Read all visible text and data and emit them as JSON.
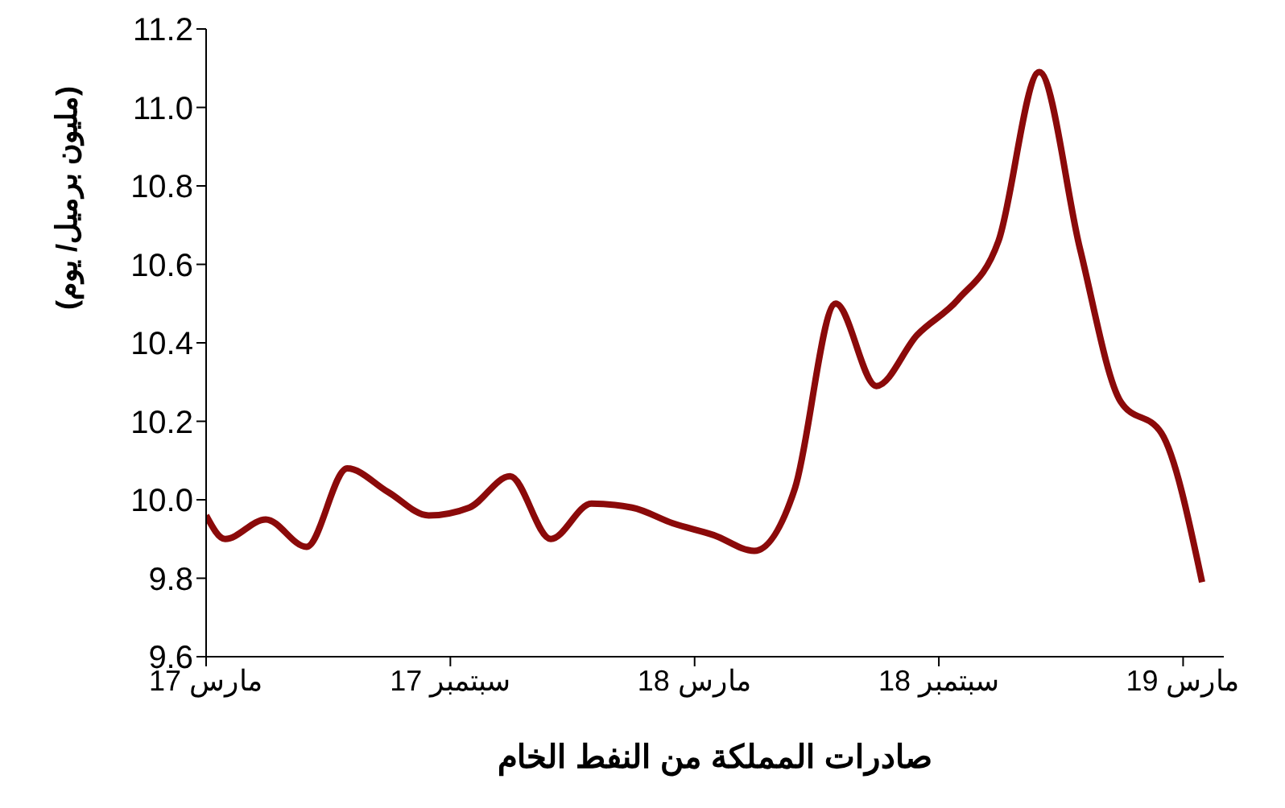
{
  "chart_data": {
    "type": "line",
    "xlabel": "صادرات المملكة من النفط الخام",
    "ylabel": "(مليون برميل/ يوم)",
    "x": [
      "2017-03-01",
      "2017-03-15",
      "2017-04-15",
      "2017-05-15",
      "2017-06-15",
      "2017-07-15",
      "2017-08-15",
      "2017-09-15",
      "2017-10-15",
      "2017-11-15",
      "2017-12-15",
      "2018-01-15",
      "2018-02-15",
      "2018-03-15",
      "2018-04-15",
      "2018-05-15",
      "2018-06-15",
      "2018-07-15",
      "2018-08-15",
      "2018-09-15",
      "2018-10-15",
      "2018-11-15",
      "2018-12-15",
      "2019-01-15",
      "2019-02-15",
      "2019-03-15"
    ],
    "series": [
      {
        "color": "#8b0a0a",
        "values": [
          9.96,
          9.9,
          9.95,
          9.88,
          10.08,
          10.02,
          9.96,
          9.98,
          10.06,
          9.9,
          9.99,
          9.98,
          9.94,
          9.91,
          9.87,
          10.03,
          10.5,
          10.29,
          10.42,
          10.51,
          10.66,
          11.09,
          10.64,
          10.25,
          10.17,
          9.79
        ]
      }
    ],
    "xlim": [
      "2017-03-01",
      "2019-03-31"
    ],
    "xticks": [
      {
        "value": "2017-03-01",
        "label": "مارس 17"
      },
      {
        "value": "2017-09-01",
        "label": "سبتمبر 17"
      },
      {
        "value": "2018-03-01",
        "label": "مارس 18"
      },
      {
        "value": "2018-09-01",
        "label": "سبتمبر 18"
      },
      {
        "value": "2019-03-01",
        "label": "مارس 19"
      }
    ],
    "ylim": [
      9.6,
      11.2
    ],
    "yticks": [
      9.6,
      9.8,
      {
        "value": 10,
        "label": "10.0"
      },
      10.2,
      10.4,
      10.6,
      10.8,
      {
        "value": 11,
        "label": "11.0"
      },
      11.2
    ],
    "grid": false,
    "legend": false,
    "marker": "none",
    "line_style": "solid"
  }
}
